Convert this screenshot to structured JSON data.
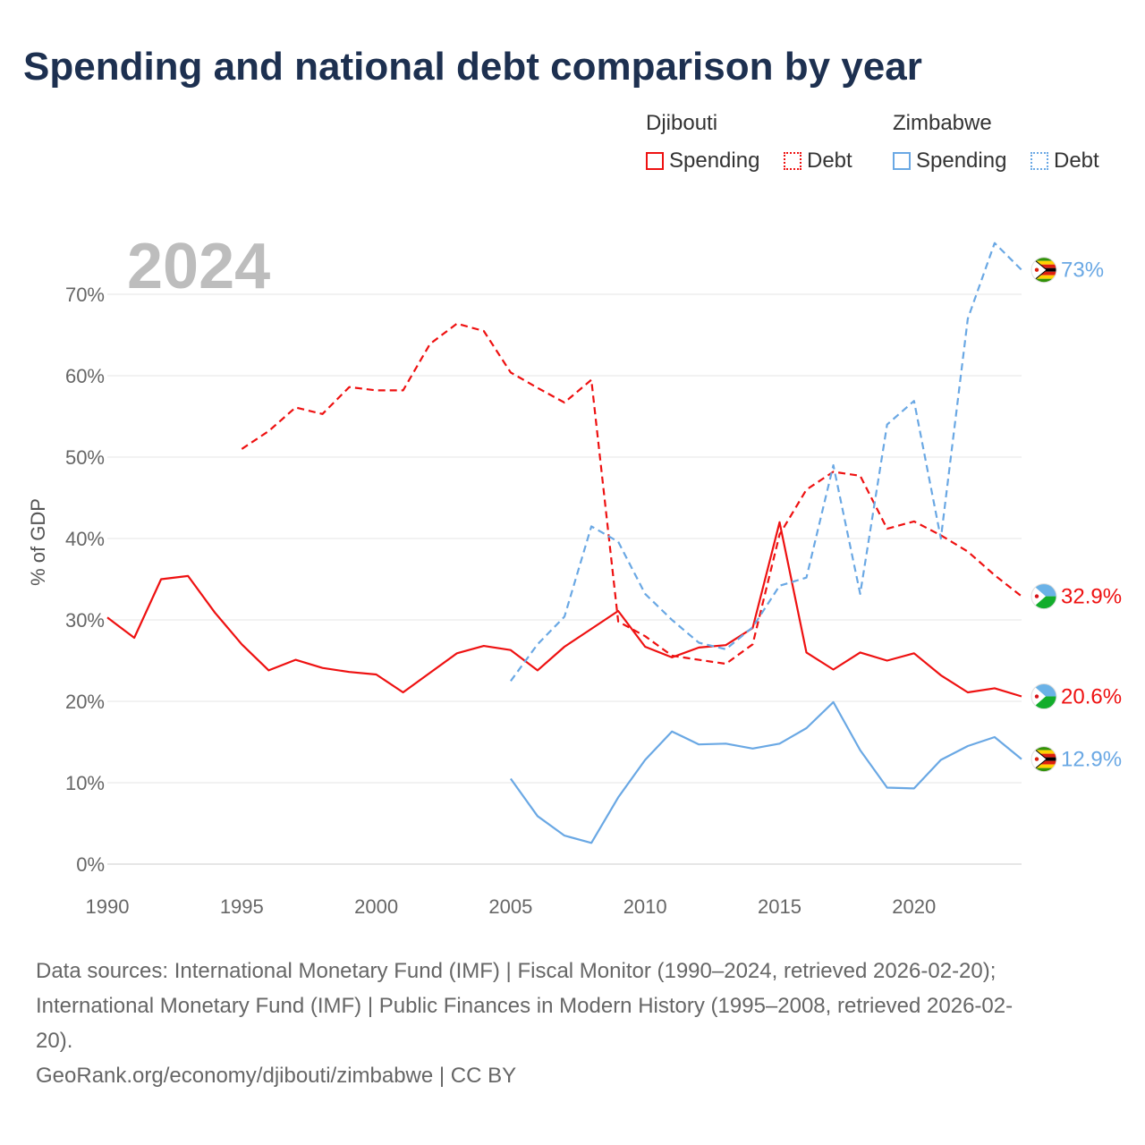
{
  "title": "Spending and national debt comparison by year",
  "year_watermark": "2024",
  "legend": {
    "groups": [
      {
        "name": "Djibouti",
        "items": [
          "Spending",
          "Debt"
        ]
      },
      {
        "name": "Zimbabwe",
        "items": [
          "Spending",
          "Debt"
        ]
      }
    ]
  },
  "colors": {
    "djibouti": "#ee1111",
    "zimbabwe": "#6aa8e4"
  },
  "chart_data": {
    "type": "line",
    "ylabel": "% of GDP",
    "xlabel": "",
    "xlim": [
      1990,
      2024
    ],
    "ylim": [
      0,
      75
    ],
    "x_ticks": [
      1990,
      1995,
      2000,
      2005,
      2010,
      2015,
      2020
    ],
    "y_ticks": [
      {
        "value": 0,
        "label": "0%"
      },
      {
        "value": 10,
        "label": "10%"
      },
      {
        "value": 20,
        "label": "20%"
      },
      {
        "value": 30,
        "label": "30%"
      },
      {
        "value": 40,
        "label": "40%"
      },
      {
        "value": 50,
        "label": "50%"
      },
      {
        "value": 60,
        "label": "60%"
      },
      {
        "value": 70,
        "label": "70%"
      }
    ],
    "series": [
      {
        "name": "Djibouti Spending",
        "country": "djibouti",
        "dash": false,
        "end_label": "20.6%",
        "points": [
          [
            1990,
            30.3
          ],
          [
            1991,
            27.8
          ],
          [
            1992,
            35.0
          ],
          [
            1993,
            35.4
          ],
          [
            1994,
            30.9
          ],
          [
            1995,
            27.0
          ],
          [
            1996,
            23.8
          ],
          [
            1997,
            25.1
          ],
          [
            1998,
            24.1
          ],
          [
            1999,
            23.6
          ],
          [
            2000,
            23.3
          ],
          [
            2001,
            21.1
          ],
          [
            2002,
            23.5
          ],
          [
            2003,
            25.9
          ],
          [
            2004,
            26.8
          ],
          [
            2005,
            26.3
          ],
          [
            2006,
            23.8
          ],
          [
            2007,
            26.7
          ],
          [
            2008,
            28.9
          ],
          [
            2009,
            31.1
          ],
          [
            2010,
            26.7
          ],
          [
            2011,
            25.4
          ],
          [
            2012,
            26.6
          ],
          [
            2013,
            26.9
          ],
          [
            2014,
            29.0
          ],
          [
            2015,
            42.0
          ],
          [
            2016,
            26.0
          ],
          [
            2017,
            23.9
          ],
          [
            2018,
            26.0
          ],
          [
            2019,
            25.0
          ],
          [
            2020,
            25.9
          ],
          [
            2021,
            23.2
          ],
          [
            2022,
            21.1
          ],
          [
            2023,
            21.6
          ],
          [
            2024,
            20.6
          ]
        ]
      },
      {
        "name": "Djibouti Debt",
        "country": "djibouti",
        "dash": true,
        "end_label": "32.9%",
        "points": [
          [
            1995,
            51.0
          ],
          [
            1996,
            53.2
          ],
          [
            1997,
            56.1
          ],
          [
            1998,
            55.3
          ],
          [
            1999,
            58.6
          ],
          [
            2000,
            58.2
          ],
          [
            2001,
            58.2
          ],
          [
            2002,
            63.9
          ],
          [
            2003,
            66.4
          ],
          [
            2004,
            65.5
          ],
          [
            2005,
            60.4
          ],
          [
            2006,
            58.5
          ],
          [
            2007,
            56.7
          ],
          [
            2008,
            59.5
          ],
          [
            2009,
            29.8
          ],
          [
            2010,
            28.0
          ],
          [
            2011,
            25.6
          ],
          [
            2012,
            25.1
          ],
          [
            2013,
            24.6
          ],
          [
            2014,
            27.0
          ],
          [
            2015,
            40.5
          ],
          [
            2016,
            46.0
          ],
          [
            2017,
            48.2
          ],
          [
            2018,
            47.7
          ],
          [
            2019,
            41.2
          ],
          [
            2020,
            42.1
          ],
          [
            2021,
            40.4
          ],
          [
            2022,
            38.4
          ],
          [
            2023,
            35.5
          ],
          [
            2024,
            32.9
          ]
        ]
      },
      {
        "name": "Zimbabwe Spending",
        "country": "zimbabwe",
        "dash": false,
        "end_label": "12.9%",
        "points": [
          [
            2005,
            10.5
          ],
          [
            2006,
            5.9
          ],
          [
            2007,
            3.5
          ],
          [
            2008,
            2.6
          ],
          [
            2009,
            8.2
          ],
          [
            2010,
            12.8
          ],
          [
            2011,
            16.3
          ],
          [
            2012,
            14.7
          ],
          [
            2013,
            14.8
          ],
          [
            2014,
            14.2
          ],
          [
            2015,
            14.8
          ],
          [
            2016,
            16.7
          ],
          [
            2017,
            19.9
          ],
          [
            2018,
            14.0
          ],
          [
            2019,
            9.4
          ],
          [
            2020,
            9.3
          ],
          [
            2021,
            12.8
          ],
          [
            2022,
            14.5
          ],
          [
            2023,
            15.6
          ],
          [
            2024,
            12.9
          ]
        ]
      },
      {
        "name": "Zimbabwe Debt",
        "country": "zimbabwe",
        "dash": true,
        "end_label": "73%",
        "points": [
          [
            2005,
            22.5
          ],
          [
            2006,
            27.0
          ],
          [
            2007,
            30.4
          ],
          [
            2008,
            41.5
          ],
          [
            2009,
            39.6
          ],
          [
            2010,
            33.2
          ],
          [
            2011,
            30.0
          ],
          [
            2012,
            27.2
          ],
          [
            2013,
            26.4
          ],
          [
            2014,
            29.1
          ],
          [
            2015,
            34.2
          ],
          [
            2016,
            35.2
          ],
          [
            2017,
            49.0
          ],
          [
            2018,
            33.2
          ],
          [
            2019,
            54.0
          ],
          [
            2020,
            56.9
          ],
          [
            2021,
            40.0
          ],
          [
            2022,
            67.0
          ],
          [
            2023,
            76.3
          ],
          [
            2024,
            73.0
          ]
        ]
      }
    ]
  },
  "sources": {
    "line1": "Data sources: International Monetary Fund (IMF) | Fiscal Monitor (1990–2024, retrieved 2026-02-20);",
    "line2": "International Monetary Fund (IMF) | Public Finances in Modern History (1995–2008, retrieved 2026-02-",
    "line3": "20).",
    "line4": "GeoRank.org/economy/djibouti/zimbabwe | CC BY"
  }
}
